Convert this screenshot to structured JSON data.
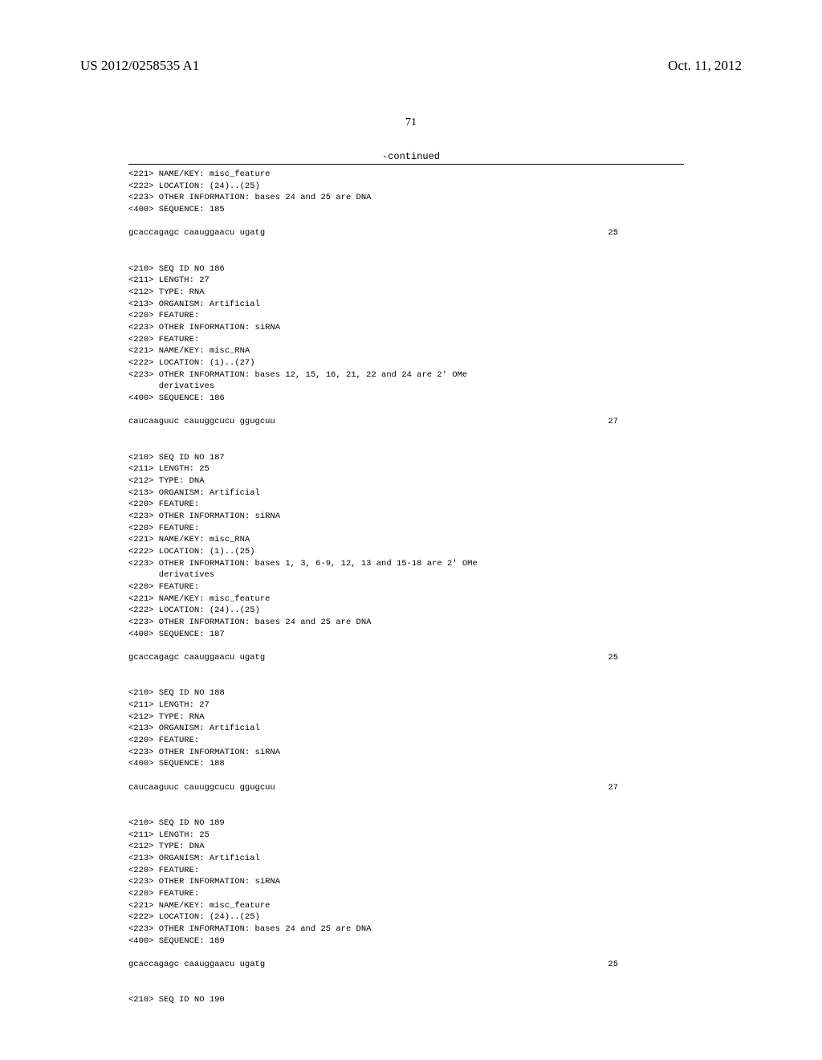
{
  "header": {
    "publication_number": "US 2012/0258535 A1",
    "publication_date": "Oct. 11, 2012"
  },
  "page_number": "71",
  "continued_label": "-continued",
  "entries": [
    {
      "lines": [
        "<221> NAME/KEY: misc_feature",
        "<222> LOCATION: (24)..(25)",
        "<223> OTHER INFORMATION: bases 24 and 25 are DNA",
        "",
        "<400> SEQUENCE: 185"
      ],
      "sequence": "gcaccagagc caauggaacu ugatg",
      "seq_number": "25"
    },
    {
      "lines": [
        "<210> SEQ ID NO 186",
        "<211> LENGTH: 27",
        "<212> TYPE: RNA",
        "<213> ORGANISM: Artificial",
        "<220> FEATURE:",
        "<223> OTHER INFORMATION: siRNA",
        "<220> FEATURE:",
        "<221> NAME/KEY: misc_RNA",
        "<222> LOCATION: (1)..(27)",
        "<223> OTHER INFORMATION: bases 12, 15, 16, 21, 22 and 24 are 2' OMe",
        "      derivatives",
        "",
        "<400> SEQUENCE: 186"
      ],
      "sequence": "caucaaguuc cauuggcucu ggugcuu",
      "seq_number": "27"
    },
    {
      "lines": [
        "<210> SEQ ID NO 187",
        "<211> LENGTH: 25",
        "<212> TYPE: DNA",
        "<213> ORGANISM: Artificial",
        "<220> FEATURE:",
        "<223> OTHER INFORMATION: siRNA",
        "<220> FEATURE:",
        "<221> NAME/KEY: misc_RNA",
        "<222> LOCATION: (1)..(25)",
        "<223> OTHER INFORMATION: bases 1, 3, 6-9, 12, 13 and 15-18 are 2' OMe",
        "      derivatives",
        "<220> FEATURE:",
        "<221> NAME/KEY: misc_feature",
        "<222> LOCATION: (24)..(25)",
        "<223> OTHER INFORMATION: bases 24 and 25 are DNA",
        "",
        "<400> SEQUENCE: 187"
      ],
      "sequence": "gcaccagagc caauggaacu ugatg",
      "seq_number": "25"
    },
    {
      "lines": [
        "<210> SEQ ID NO 188",
        "<211> LENGTH: 27",
        "<212> TYPE: RNA",
        "<213> ORGANISM: Artificial",
        "<220> FEATURE:",
        "<223> OTHER INFORMATION: siRNA",
        "",
        "<400> SEQUENCE: 188"
      ],
      "sequence": "caucaaguuc cauuggcucu ggugcuu",
      "seq_number": "27"
    },
    {
      "lines": [
        "<210> SEQ ID NO 189",
        "<211> LENGTH: 25",
        "<212> TYPE: DNA",
        "<213> ORGANISM: Artificial",
        "<220> FEATURE:",
        "<223> OTHER INFORMATION: siRNA",
        "<220> FEATURE:",
        "<221> NAME/KEY: misc_feature",
        "<222> LOCATION: (24)..(25)",
        "<223> OTHER INFORMATION: bases 24 and 25 are DNA",
        "",
        "<400> SEQUENCE: 189"
      ],
      "sequence": "gcaccagagc caauggaacu ugatg",
      "seq_number": "25"
    },
    {
      "lines": [
        "<210> SEQ ID NO 190"
      ],
      "sequence": null,
      "seq_number": null
    }
  ]
}
